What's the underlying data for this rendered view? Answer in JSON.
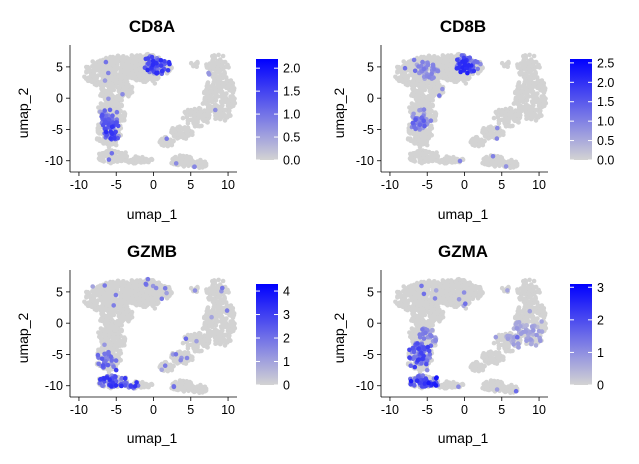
{
  "figure": {
    "colors": {
      "low": "#d3d3d3",
      "high": "#0000ff",
      "axis": "#000000",
      "text": "#000000"
    },
    "panels_layout": "2x2 grid"
  },
  "chart_data": [
    {
      "type": "scatter",
      "title": "CD8A",
      "xlabel": "umap_1",
      "ylabel": "umap_2",
      "xlim": [
        -11.2,
        11.2
      ],
      "ylim": [
        -11.8,
        8.5
      ],
      "xticks": [
        -10,
        -5,
        0,
        5,
        10
      ],
      "yticks": [
        -10,
        -5,
        0,
        5
      ],
      "colorbar": {
        "ticks": [
          0.0,
          0.5,
          1.0,
          1.5,
          2.0
        ],
        "tick_labels": [
          "0.0",
          "0.5",
          "1.0",
          "1.5",
          "2.0"
        ],
        "min": 0,
        "max": 2.2
      },
      "hotspots": [
        {
          "x": 0.5,
          "y": 5.5,
          "r": 1.8,
          "level": 0.8
        },
        {
          "x": -6.0,
          "y": -3.5,
          "r": 1.8,
          "level": 0.65
        },
        {
          "x": -5.5,
          "y": -5.5,
          "r": 1.2,
          "level": 0.8
        }
      ]
    },
    {
      "type": "scatter",
      "title": "CD8B",
      "xlabel": "umap_1",
      "ylabel": "umap_2",
      "xlim": [
        -11.2,
        11.2
      ],
      "ylim": [
        -11.8,
        8.5
      ],
      "xticks": [
        -10,
        -5,
        0,
        5,
        10
      ],
      "yticks": [
        -10,
        -5,
        0,
        5
      ],
      "colorbar": {
        "ticks": [
          0.0,
          0.5,
          1.0,
          1.5,
          2.0,
          2.5
        ],
        "tick_labels": [
          "0.0",
          "0.5",
          "1.0",
          "1.5",
          "2.0",
          "2.5"
        ],
        "min": 0,
        "max": 2.6
      },
      "hotspots": [
        {
          "x": 0.5,
          "y": 5.5,
          "r": 1.8,
          "level": 0.85
        },
        {
          "x": -6.0,
          "y": -3.5,
          "r": 1.8,
          "level": 0.6
        },
        {
          "x": -5.0,
          "y": 4.5,
          "r": 1.5,
          "level": 0.4
        }
      ]
    },
    {
      "type": "scatter",
      "title": "GZMB",
      "xlabel": "umap_1",
      "ylabel": "umap_2",
      "xlim": [
        -11.2,
        11.2
      ],
      "ylim": [
        -11.8,
        8.5
      ],
      "xticks": [
        -10,
        -5,
        0,
        5,
        10
      ],
      "yticks": [
        -10,
        -5,
        0,
        5
      ],
      "colorbar": {
        "ticks": [
          0,
          1,
          2,
          3,
          4
        ],
        "tick_labels": [
          "0",
          "1",
          "2",
          "3",
          "4"
        ],
        "min": 0,
        "max": 4.3
      },
      "hotspots": [
        {
          "x": -5.5,
          "y": -9.5,
          "r": 2.2,
          "level": 0.8
        },
        {
          "x": -6.5,
          "y": -6.0,
          "r": 1.5,
          "level": 0.6
        },
        {
          "x": -3.0,
          "y": -10.0,
          "r": 1.0,
          "level": 0.85
        },
        {
          "x": 2.0,
          "y": -10.0,
          "r": 1.0,
          "level": 0.6
        }
      ]
    },
    {
      "type": "scatter",
      "title": "GZMA",
      "xlabel": "umap_1",
      "ylabel": "umap_2",
      "xlim": [
        -11.2,
        11.2
      ],
      "ylim": [
        -11.8,
        8.5
      ],
      "xticks": [
        -10,
        -5,
        0,
        5,
        10
      ],
      "yticks": [
        -10,
        -5,
        0,
        5
      ],
      "colorbar": {
        "ticks": [
          0,
          1,
          2,
          3
        ],
        "tick_labels": [
          "0",
          "1",
          "2",
          "3"
        ],
        "min": 0,
        "max": 3.1
      },
      "hotspots": [
        {
          "x": -5.5,
          "y": -9.5,
          "r": 2.4,
          "level": 0.9
        },
        {
          "x": -6.0,
          "y": -5.0,
          "r": 2.2,
          "level": 0.75
        },
        {
          "x": -4.5,
          "y": -2.0,
          "r": 1.8,
          "level": 0.45
        },
        {
          "x": 8.0,
          "y": -2.0,
          "r": 2.5,
          "level": 0.3
        }
      ]
    }
  ]
}
